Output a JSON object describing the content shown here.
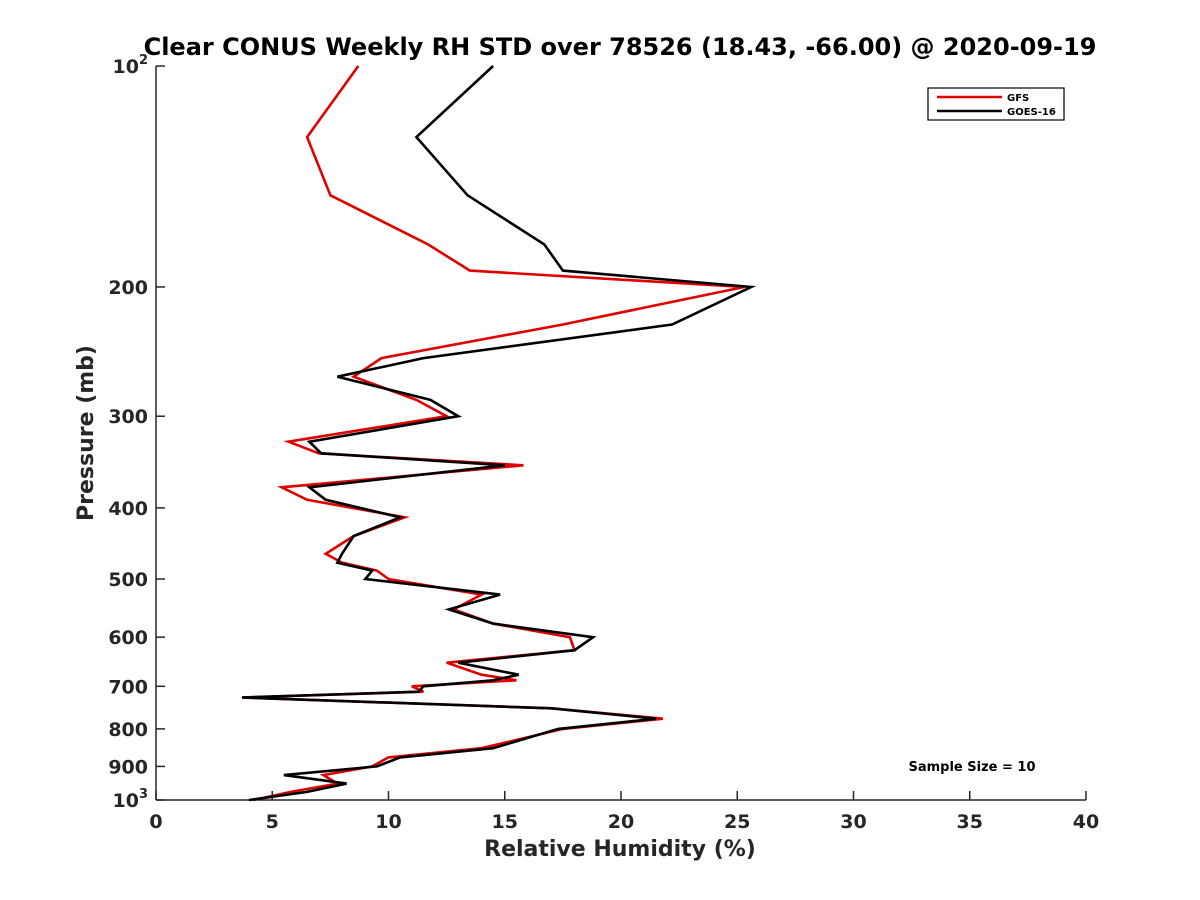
{
  "chart_data": {
    "type": "line",
    "title": "Clear CONUS Weekly RH STD over 78526 (18.43, -66.00) @ 2020-09-19",
    "xlabel": "Relative Humidity (%)",
    "ylabel": "Pressure (mb)",
    "xlim": [
      0,
      40
    ],
    "ylim": [
      100,
      1000
    ],
    "y_scale": "log",
    "y_reversed": true,
    "x_ticks": [
      "0",
      "5",
      "10",
      "15",
      "20",
      "25",
      "30",
      "35",
      "40"
    ],
    "y_ticks": [
      {
        "value": 100,
        "base": "10",
        "exp": "2"
      },
      {
        "value": 200,
        "label": "200"
      },
      {
        "value": 300,
        "label": "300"
      },
      {
        "value": 400,
        "label": "400"
      },
      {
        "value": 500,
        "label": "500"
      },
      {
        "value": 600,
        "label": "600"
      },
      {
        "value": 700,
        "label": "700"
      },
      {
        "value": 800,
        "label": "800"
      },
      {
        "value": 900,
        "label": "900"
      },
      {
        "value": 1000,
        "base": "10",
        "exp": "3"
      }
    ],
    "legend_position": "top-right",
    "grid": false,
    "annotation": "Sample Size = 10",
    "series": [
      {
        "name": "GFS",
        "color": "#e00000",
        "points": [
          [
            8.7,
            100
          ],
          [
            6.5,
            125
          ],
          [
            7.5,
            150
          ],
          [
            11.7,
            175
          ],
          [
            13.5,
            190
          ],
          [
            25.3,
            200
          ],
          [
            17.5,
            225
          ],
          [
            9.7,
            250
          ],
          [
            8.5,
            265
          ],
          [
            11.2,
            285
          ],
          [
            12.5,
            300
          ],
          [
            5.7,
            325
          ],
          [
            7.0,
            337
          ],
          [
            15.8,
            350
          ],
          [
            5.4,
            375
          ],
          [
            6.5,
            390
          ],
          [
            10.7,
            412
          ],
          [
            8.5,
            437
          ],
          [
            7.3,
            462
          ],
          [
            8.0,
            475
          ],
          [
            9.5,
            487
          ],
          [
            10.0,
            500
          ],
          [
            14.0,
            525
          ],
          [
            12.8,
            550
          ],
          [
            14.5,
            575
          ],
          [
            17.8,
            600
          ],
          [
            18.0,
            625
          ],
          [
            12.5,
            650
          ],
          [
            14.0,
            675
          ],
          [
            15.5,
            687
          ],
          [
            11.0,
            700
          ],
          [
            11.5,
            712
          ],
          [
            3.7,
            725
          ],
          [
            17.0,
            750
          ],
          [
            21.8,
            775
          ],
          [
            17.5,
            800
          ],
          [
            14.0,
            850
          ],
          [
            10.0,
            875
          ],
          [
            9.3,
            900
          ],
          [
            7.2,
            925
          ],
          [
            7.8,
            950
          ],
          [
            5.8,
            975
          ],
          [
            4.2,
            1000
          ]
        ]
      },
      {
        "name": "GOES-16",
        "color": "#000000",
        "points": [
          [
            14.5,
            100
          ],
          [
            11.2,
            125
          ],
          [
            13.4,
            150
          ],
          [
            16.7,
            175
          ],
          [
            17.5,
            190
          ],
          [
            25.6,
            200
          ],
          [
            22.2,
            225
          ],
          [
            11.5,
            250
          ],
          [
            7.8,
            265
          ],
          [
            11.8,
            285
          ],
          [
            13.0,
            300
          ],
          [
            6.6,
            325
          ],
          [
            7.1,
            337
          ],
          [
            15.0,
            350
          ],
          [
            6.6,
            375
          ],
          [
            7.3,
            390
          ],
          [
            10.5,
            412
          ],
          [
            8.5,
            437
          ],
          [
            8.0,
            462
          ],
          [
            7.8,
            475
          ],
          [
            9.3,
            487
          ],
          [
            9.0,
            500
          ],
          [
            14.8,
            525
          ],
          [
            12.6,
            550
          ],
          [
            14.5,
            575
          ],
          [
            18.8,
            600
          ],
          [
            18.0,
            625
          ],
          [
            13.0,
            650
          ],
          [
            15.6,
            675
          ],
          [
            14.5,
            687
          ],
          [
            11.5,
            700
          ],
          [
            11.3,
            712
          ],
          [
            3.7,
            725
          ],
          [
            17.0,
            750
          ],
          [
            21.5,
            775
          ],
          [
            17.3,
            800
          ],
          [
            14.5,
            850
          ],
          [
            10.5,
            875
          ],
          [
            9.5,
            900
          ],
          [
            5.5,
            925
          ],
          [
            8.2,
            950
          ],
          [
            6.5,
            975
          ],
          [
            4.0,
            1000
          ]
        ]
      }
    ]
  }
}
